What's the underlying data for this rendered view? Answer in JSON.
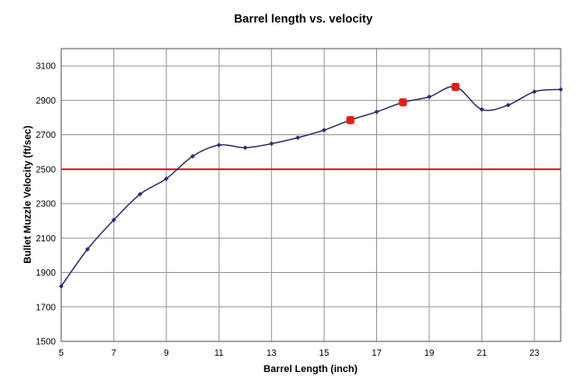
{
  "chart_data": {
    "type": "line",
    "title": "Barrel length vs. velocity",
    "xlabel": "Barrel Length (inch)",
    "ylabel": "Bullet Muzzle Velocity (ft/sec)",
    "xlim": [
      5,
      24
    ],
    "ylim": [
      1500,
      3200
    ],
    "xticks": [
      5,
      7,
      9,
      11,
      13,
      15,
      17,
      19,
      21,
      23
    ],
    "yticks": [
      1500,
      1700,
      1900,
      2100,
      2300,
      2500,
      2700,
      2900,
      3100
    ],
    "grid": {
      "vertical": true,
      "horizontal": true
    },
    "series": [
      {
        "color": "#2b2b6b",
        "smooth": true,
        "x": [
          5,
          6,
          7,
          8,
          9,
          10,
          11,
          12,
          13,
          14,
          15,
          16,
          17,
          18,
          19,
          20,
          21,
          22,
          23,
          24
        ],
        "y": [
          1820,
          2035,
          2205,
          2355,
          2445,
          2575,
          2640,
          2625,
          2648,
          2683,
          2727,
          2785,
          2833,
          2888,
          2920,
          2978,
          2847,
          2872,
          2950,
          2963
        ]
      }
    ],
    "highlighted_points": {
      "color": "#e0201c",
      "x": [
        16,
        18,
        20
      ],
      "y": [
        2785,
        2888,
        2978
      ]
    },
    "reference_line": {
      "y": 2500,
      "color": "#e0201c"
    }
  }
}
